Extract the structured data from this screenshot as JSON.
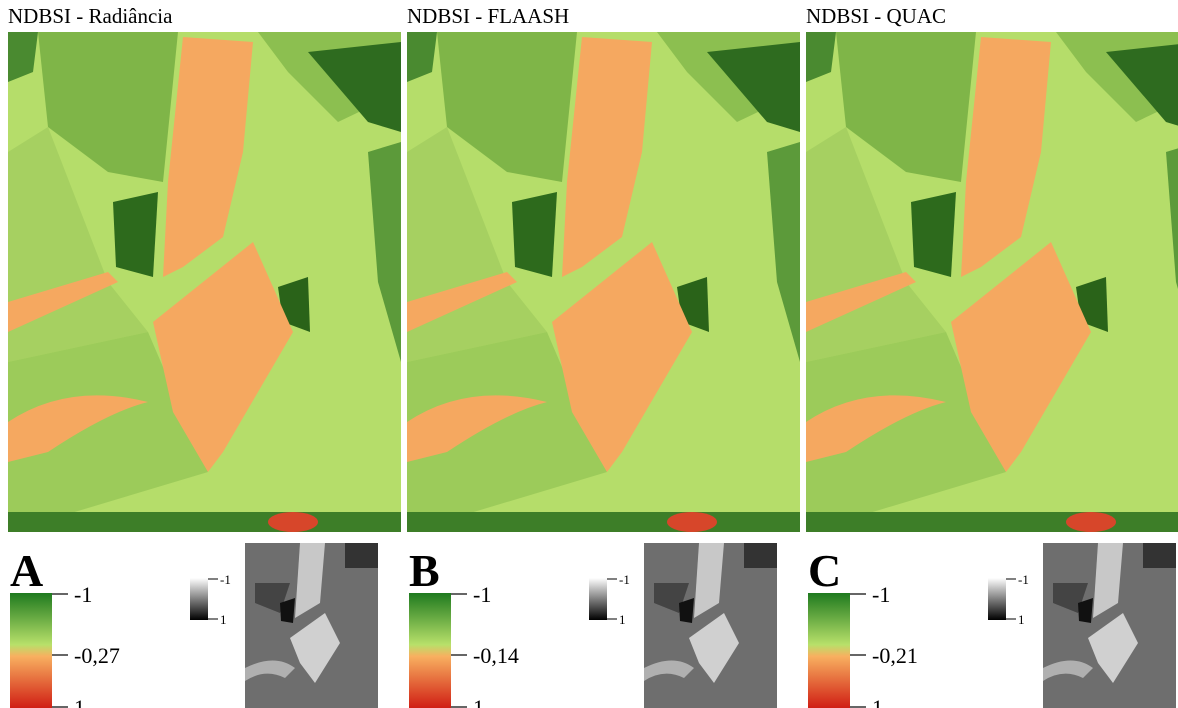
{
  "panels": [
    {
      "title": "NDBSI - Radiância",
      "letter": "A",
      "colorbar": {
        "top": "-1",
        "mid": "-0,27",
        "bottom": "1"
      },
      "gray_scale": {
        "top": "-1",
        "bottom": "1"
      }
    },
    {
      "title": "NDBSI - FLAASH",
      "letter": "B",
      "colorbar": {
        "top": "-1",
        "mid": "-0,14",
        "bottom": "1"
      },
      "gray_scale": {
        "top": "-1",
        "bottom": "1"
      }
    },
    {
      "title": "NDBSI - QUAC",
      "letter": "C",
      "colorbar": {
        "top": "-1",
        "mid": "-0,21",
        "bottom": "1"
      },
      "gray_scale": {
        "top": "-1",
        "bottom": "1"
      }
    }
  ]
}
